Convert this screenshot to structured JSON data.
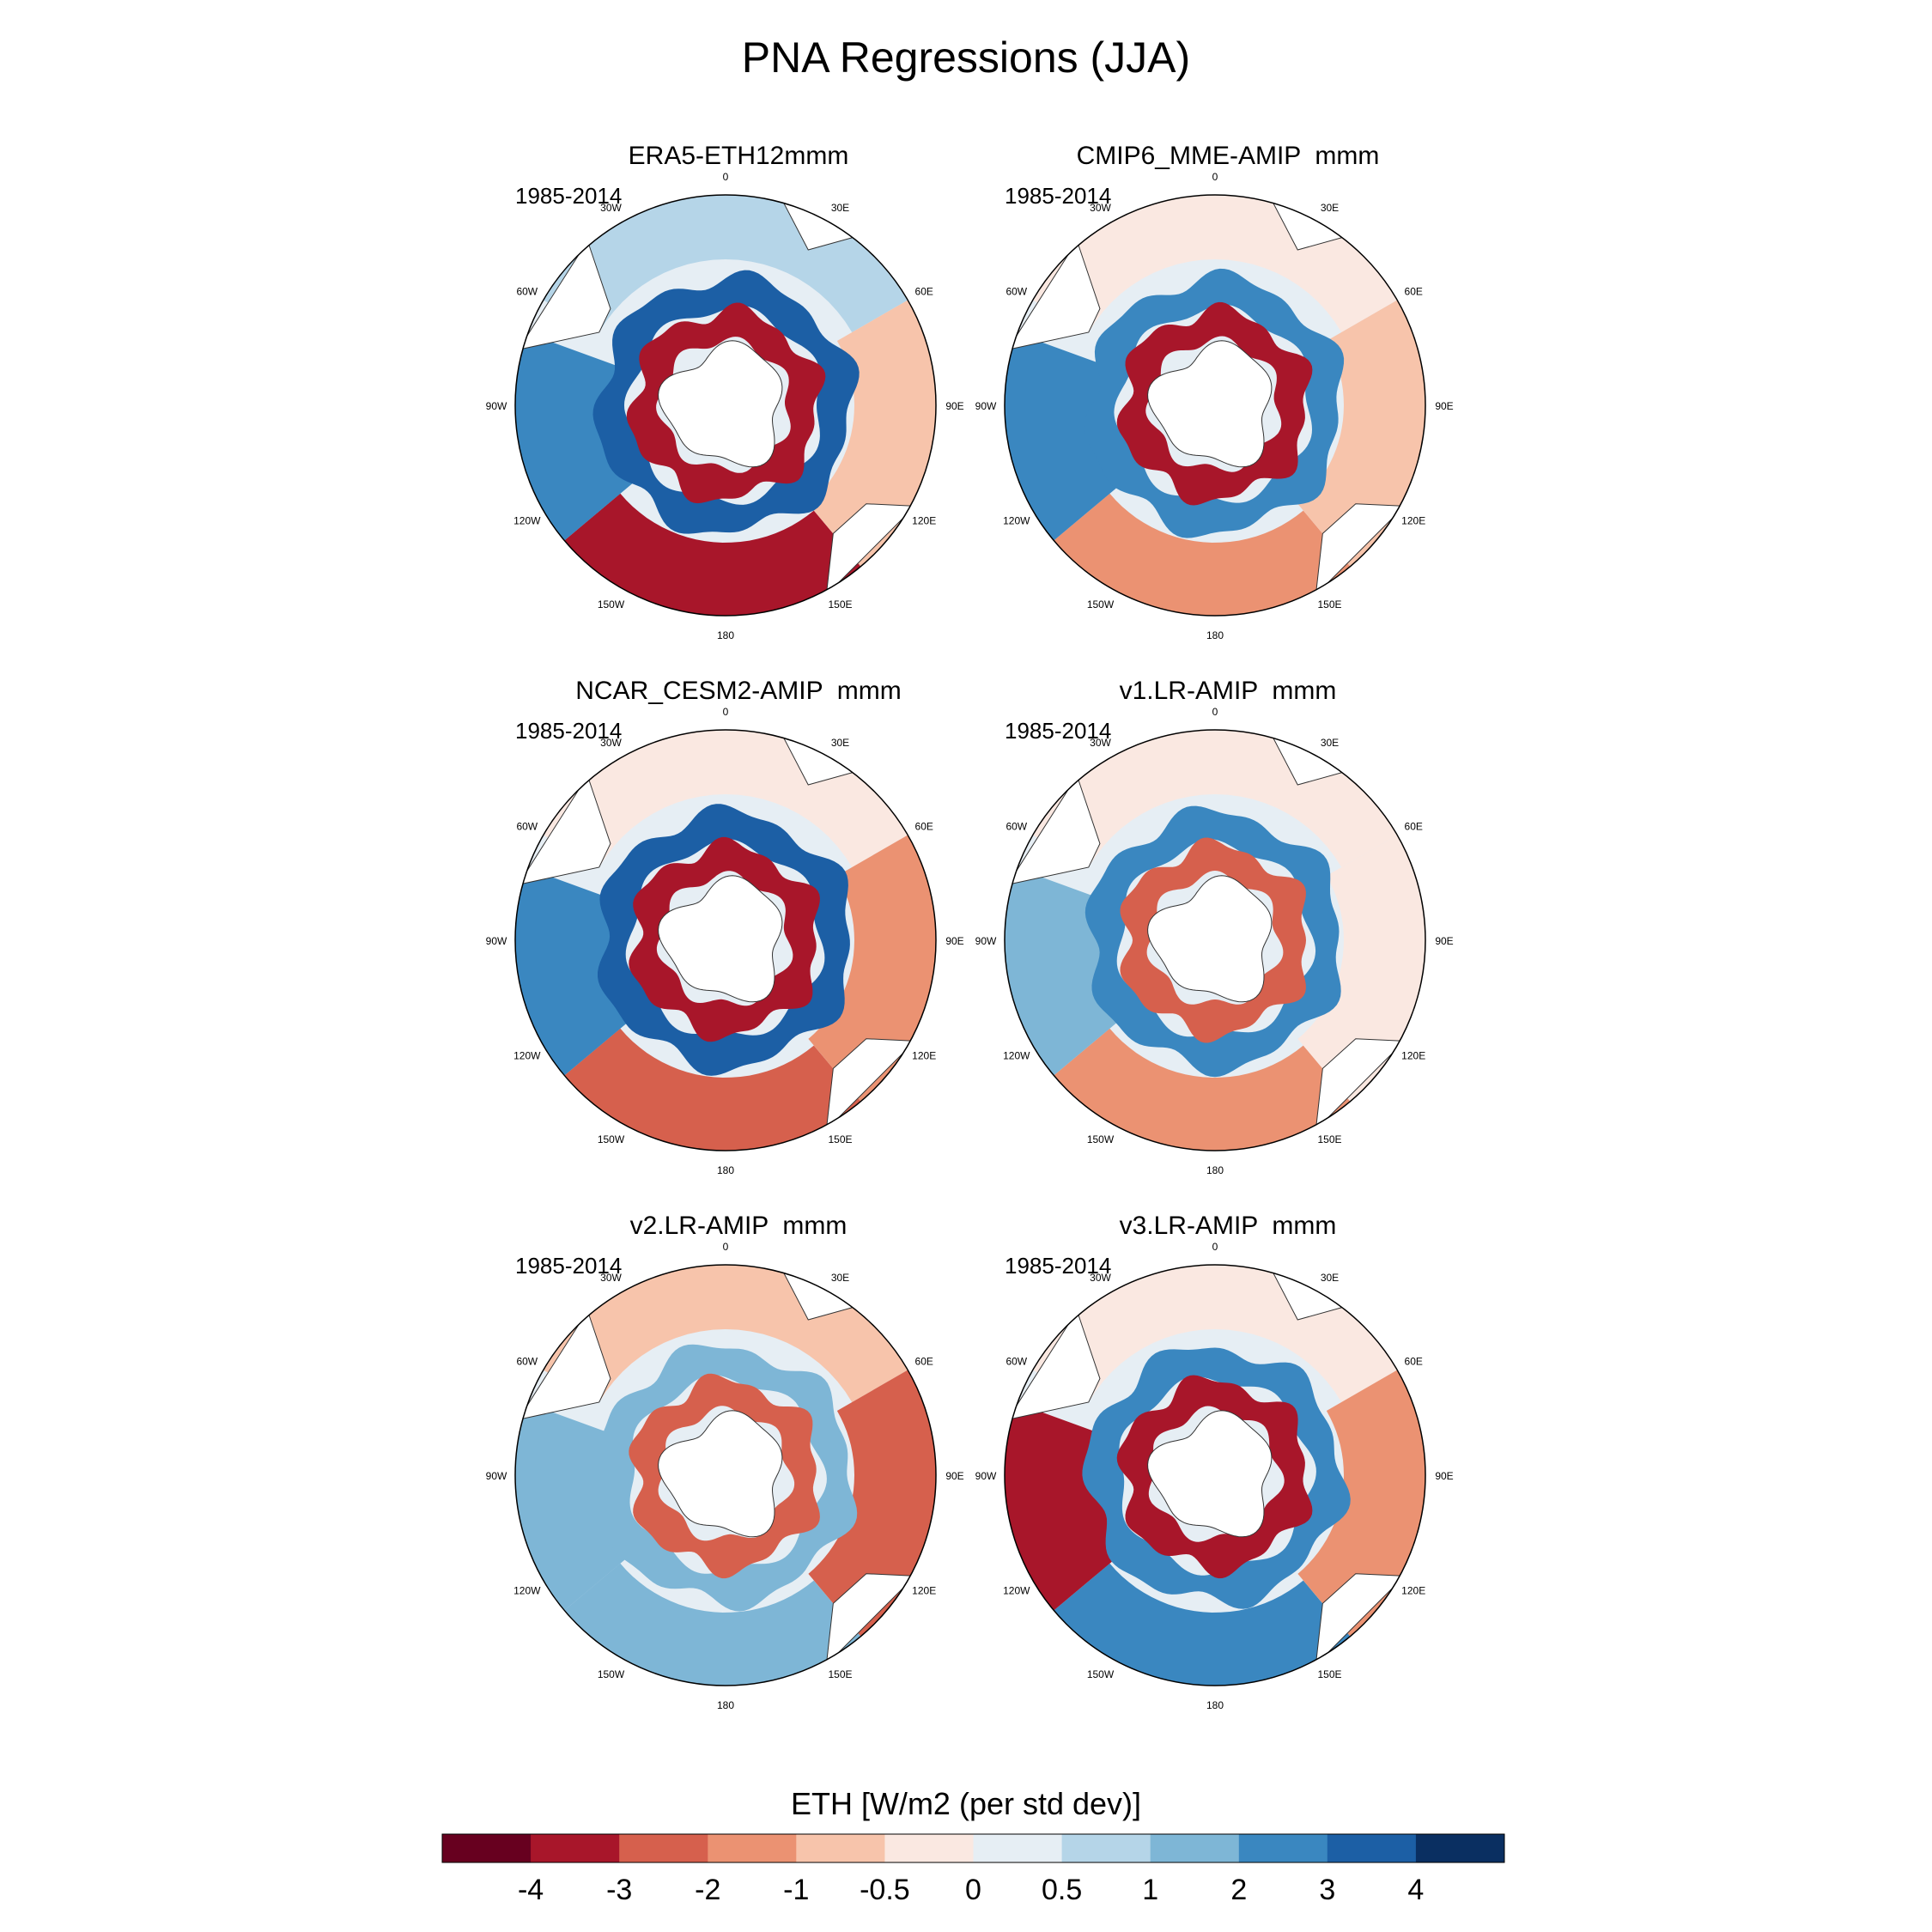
{
  "title": "PNA Regressions (JJA)",
  "chart_data": {
    "type": "heatmap",
    "projection": "south polar stereographic",
    "variable": "ETH",
    "colorbar": {
      "title": "ETH [W/m2 (per std dev)]",
      "tick_labels": [
        "-4",
        "-3",
        "-2",
        "-1",
        "-0.5",
        "0",
        "0.5",
        "1",
        "2",
        "3",
        "4"
      ],
      "levels": [
        -4,
        -3,
        -2,
        -1,
        -0.5,
        0,
        0.5,
        1,
        2,
        3,
        4
      ],
      "colors": [
        "#67001f",
        "#a8162a",
        "#d6604d",
        "#eb9272",
        "#f7c4ab",
        "#fae8e1",
        "#e6eef4",
        "#b5d5e8",
        "#7eb6d6",
        "#3a87c0",
        "#1c5fa5",
        "#0a2f61"
      ]
    },
    "longitude_labels": [
      "0",
      "30E",
      "60E",
      "90E",
      "120E",
      "150E",
      "180",
      "150W",
      "120W",
      "90W",
      "60W",
      "30W"
    ],
    "panels": [
      {
        "title": "ERA5-ETH12mmm",
        "period": "1985-2014",
        "inner_ring": -4,
        "second_ring": 3,
        "pacific": -3.5,
        "atlantic": 0.5,
        "indian": -1,
        "west": 2
      },
      {
        "title": "CMIP6_MME-AMIP  mmm",
        "period": "1985-2014",
        "inner_ring": -3.5,
        "second_ring": 2.5,
        "pacific": -2,
        "atlantic": -0.5,
        "indian": -1,
        "west": 2
      },
      {
        "title": "NCAR_CESM2-AMIP  mmm",
        "period": "1985-2014",
        "inner_ring": -3.5,
        "second_ring": 3,
        "pacific": -3,
        "atlantic": -0.5,
        "indian": -1.5,
        "west": 2
      },
      {
        "title": "v1.LR-AMIP  mmm",
        "period": "1985-2014",
        "inner_ring": -3,
        "second_ring": 2.5,
        "pacific": -1.5,
        "atlantic": -0.5,
        "indian": -0.5,
        "west": 1.5
      },
      {
        "title": "v2.LR-AMIP  mmm",
        "period": "1985-2014",
        "inner_ring": -2.5,
        "second_ring": 1.5,
        "pacific": 1.5,
        "atlantic": -1,
        "indian": -2.5,
        "west": 1
      },
      {
        "title": "v3.LR-AMIP  mmm",
        "period": "1985-2014",
        "inner_ring": -3.5,
        "second_ring": 2.5,
        "pacific": 2,
        "atlantic": -0.5,
        "indian": -1.5,
        "west": -3.5
      }
    ]
  }
}
